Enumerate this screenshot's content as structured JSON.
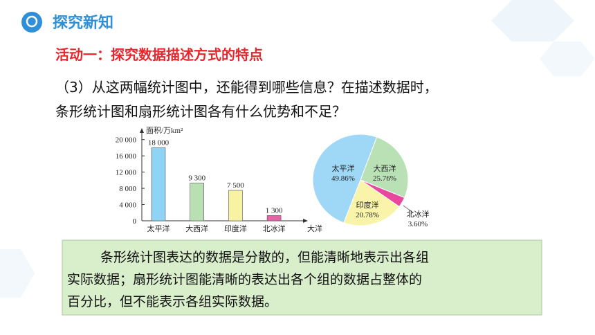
{
  "header": {
    "title": "探究新知"
  },
  "activity": "活动一：探究数据描述方式的特点",
  "question": [
    "（3）从这两幅统计图中，还能得到哪些信息？在描述数据时，",
    "条形统计图和扇形统计图各有什么优势和不足？"
  ],
  "answer": [
    "条形统计图表达的数据是分散的，但能清晰地表示出各组",
    "实际数据；扇形统计图能清晰的表达出各个组的数据占整体的",
    "百分比，但不能表示各组实际数据。"
  ],
  "chart_data": [
    {
      "type": "bar",
      "y_label": "面积/万km²",
      "x_label": "大洋",
      "categories": [
        "太平洋",
        "大西洋",
        "印度洋",
        "北冰洋"
      ],
      "values": [
        18000,
        9300,
        7500,
        1300
      ],
      "value_labels": [
        "18 000",
        "9 300",
        "7 500",
        "1 300"
      ],
      "colors": [
        "#8fd4f5",
        "#b9e0b3",
        "#f8f3a3",
        "#e564a6"
      ],
      "ylim": [
        0,
        22000
      ],
      "yticks": [
        0,
        {
          "value": 4000,
          "label": "4 000"
        },
        {
          "value": 8000,
          "label": "8 000"
        },
        {
          "value": 12000,
          "label": "12 000"
        },
        {
          "value": 16000,
          "label": "16 000"
        },
        {
          "value": 20000,
          "label": "20 000"
        }
      ]
    },
    {
      "type": "pie",
      "categories": [
        "太平洋",
        "大西洋",
        "印度洋",
        "北冰洋"
      ],
      "values": [
        49.86,
        25.76,
        20.78,
        3.6
      ],
      "value_labels": [
        "49.86%",
        "25.76%",
        "20.78%",
        "3.60%"
      ],
      "colors": [
        "#9ed8f6",
        "#bae0b5",
        "#f9f4a9",
        "#e8489e"
      ]
    }
  ]
}
